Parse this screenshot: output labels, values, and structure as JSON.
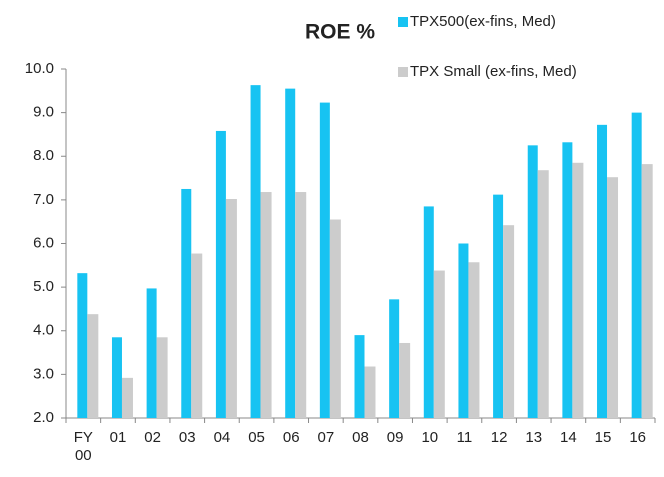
{
  "chart_data": {
    "type": "bar",
    "title": "ROE %",
    "categories": [
      "FY 00",
      "01",
      "02",
      "03",
      "04",
      "05",
      "06",
      "07",
      "08",
      "09",
      "10",
      "11",
      "12",
      "13",
      "14",
      "15",
      "16"
    ],
    "series": [
      {
        "name": "TPX500(ex-fins, Med)",
        "color": "#17c3f2",
        "values": [
          5.32,
          3.85,
          4.97,
          7.25,
          8.58,
          9.63,
          9.55,
          9.23,
          3.9,
          4.72,
          6.85,
          6.0,
          7.12,
          8.25,
          8.32,
          8.72,
          9.0
        ]
      },
      {
        "name": "TPX Small (ex-fins, Med)",
        "color": "#cccccc",
        "values": [
          4.38,
          2.92,
          3.85,
          5.77,
          7.02,
          7.18,
          7.18,
          6.55,
          3.18,
          3.72,
          5.38,
          5.57,
          6.42,
          7.68,
          7.85,
          7.52,
          7.82
        ]
      }
    ],
    "ylim": [
      2,
      10
    ],
    "yticks": [
      {
        "value": 2,
        "label": "2.0"
      },
      {
        "value": 3,
        "label": "3.0"
      },
      {
        "value": 4,
        "label": "4.0"
      },
      {
        "value": 5,
        "label": "5.0"
      },
      {
        "value": 6,
        "label": "6.0"
      },
      {
        "value": 7,
        "label": "7.0"
      },
      {
        "value": 8,
        "label": "8.0"
      },
      {
        "value": 9,
        "label": "9.0"
      },
      {
        "value": 10,
        "label": "10.0"
      }
    ],
    "grid": false
  }
}
